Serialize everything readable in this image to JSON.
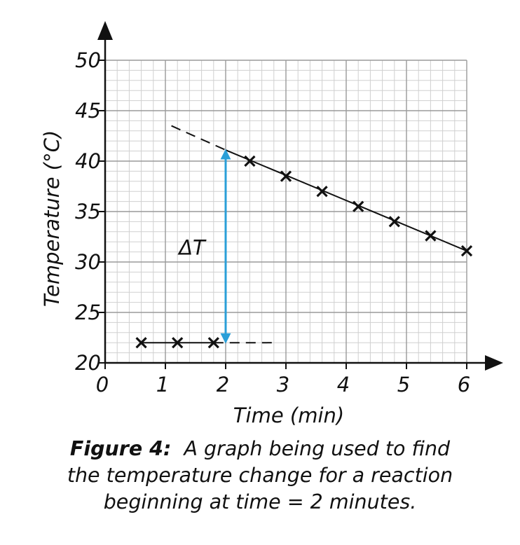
{
  "chart_data": {
    "type": "scatter",
    "xlabel": "Time (min)",
    "ylabel": "Temperature (°C)",
    "xlim": [
      0,
      6
    ],
    "ylim": [
      20,
      50
    ],
    "x_ticks": [
      "0",
      "1",
      "2",
      "3",
      "4",
      "5",
      "6"
    ],
    "y_ticks": [
      "20",
      "25",
      "30",
      "35",
      "40",
      "45",
      "50"
    ],
    "grid": true,
    "series": [
      {
        "points": [
          [
            0.6,
            22
          ],
          [
            1.2,
            22
          ],
          [
            1.8,
            22
          ]
        ]
      },
      {
        "points": [
          [
            2.4,
            40
          ],
          [
            3.0,
            38.5
          ],
          [
            3.6,
            37
          ],
          [
            4.2,
            35.5
          ],
          [
            4.8,
            34
          ],
          [
            5.4,
            32.6
          ],
          [
            6.0,
            31.1
          ]
        ]
      }
    ],
    "fit_lines": [
      {
        "solid": [
          [
            0.6,
            22
          ],
          [
            1.8,
            22
          ]
        ],
        "dashed": [
          [
            1.8,
            22
          ],
          [
            2.8,
            22
          ]
        ]
      },
      {
        "solid": [
          [
            2.0,
            41.1
          ],
          [
            6.0,
            31.1
          ]
        ],
        "dashed": [
          [
            1.1,
            43.5
          ],
          [
            2.0,
            41.1
          ]
        ]
      }
    ],
    "annotation": {
      "label": "ΔT",
      "x": 2,
      "y_from": 22,
      "y_to": 41.1,
      "color": "#2a9fd8"
    },
    "mark_color": "#111111"
  },
  "caption": {
    "label": "Figure 4:",
    "line1": "A graph being used to find",
    "line2": "the temperature change for a reaction",
    "line3": "beginning at time = 2 minutes."
  }
}
